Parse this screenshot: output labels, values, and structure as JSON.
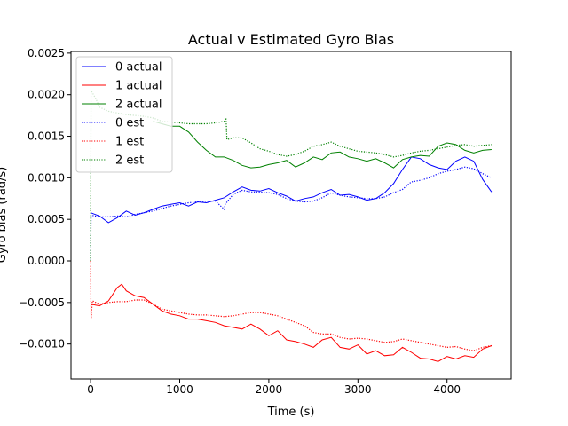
{
  "chart_data": {
    "type": "line",
    "title": "Actual v Estimated Gyro Bias",
    "xlabel": "Time (s)",
    "ylabel": "Gyro bias (rad/s)",
    "xlim": [
      -220,
      4720
    ],
    "ylim": [
      -0.00142,
      0.00252
    ],
    "xticks": [
      0,
      1000,
      2000,
      3000,
      4000
    ],
    "xtick_labels": [
      "0",
      "1000",
      "2000",
      "3000",
      "4000"
    ],
    "yticks": [
      -0.001,
      -0.0005,
      0.0,
      0.0005,
      0.001,
      0.0015,
      0.002,
      0.0025
    ],
    "ytick_labels": [
      "−0.0010",
      "−0.0005",
      "0.0000",
      "0.0005",
      "0.0010",
      "0.0015",
      "0.0020",
      "0.0025"
    ],
    "grid": false,
    "legend_position": "upper-left",
    "series": [
      {
        "name": "0 actual",
        "color": "#0000ff",
        "style": "solid",
        "points": [
          [
            0,
            0.00058
          ],
          [
            100,
            0.00054
          ],
          [
            200,
            0.00046
          ],
          [
            300,
            0.00052
          ],
          [
            400,
            0.0006
          ],
          [
            500,
            0.00055
          ],
          [
            600,
            0.00058
          ],
          [
            700,
            0.00062
          ],
          [
            800,
            0.00066
          ],
          [
            900,
            0.00068
          ],
          [
            1000,
            0.0007
          ],
          [
            1100,
            0.00066
          ],
          [
            1200,
            0.00071
          ],
          [
            1300,
            0.0007
          ],
          [
            1400,
            0.00073
          ],
          [
            1500,
            0.00076
          ],
          [
            1600,
            0.00083
          ],
          [
            1700,
            0.00089
          ],
          [
            1800,
            0.00085
          ],
          [
            1900,
            0.00084
          ],
          [
            2000,
            0.00087
          ],
          [
            2100,
            0.00082
          ],
          [
            2200,
            0.00078
          ],
          [
            2300,
            0.00072
          ],
          [
            2400,
            0.00075
          ],
          [
            2500,
            0.00077
          ],
          [
            2600,
            0.00082
          ],
          [
            2700,
            0.00086
          ],
          [
            2800,
            0.00079
          ],
          [
            2900,
            0.0008
          ],
          [
            3000,
            0.00077
          ],
          [
            3100,
            0.00073
          ],
          [
            3200,
            0.00075
          ],
          [
            3300,
            0.00082
          ],
          [
            3400,
            0.00093
          ],
          [
            3500,
            0.0011
          ],
          [
            3600,
            0.00125
          ],
          [
            3700,
            0.00123
          ],
          [
            3800,
            0.00116
          ],
          [
            3900,
            0.00112
          ],
          [
            4000,
            0.0011
          ],
          [
            4100,
            0.0012
          ],
          [
            4200,
            0.00125
          ],
          [
            4300,
            0.0012
          ],
          [
            4400,
            0.00098
          ],
          [
            4500,
            0.00083
          ]
        ]
      },
      {
        "name": "1 actual",
        "color": "#ff0000",
        "style": "solid",
        "points": [
          [
            0,
            -0.00052
          ],
          [
            100,
            -0.00054
          ],
          [
            200,
            -0.00048
          ],
          [
            300,
            -0.00032
          ],
          [
            350,
            -0.00028
          ],
          [
            400,
            -0.00036
          ],
          [
            500,
            -0.00042
          ],
          [
            600,
            -0.00044
          ],
          [
            700,
            -0.00052
          ],
          [
            800,
            -0.0006
          ],
          [
            900,
            -0.00064
          ],
          [
            1000,
            -0.00066
          ],
          [
            1100,
            -0.0007
          ],
          [
            1200,
            -0.0007
          ],
          [
            1300,
            -0.00072
          ],
          [
            1400,
            -0.00074
          ],
          [
            1500,
            -0.00078
          ],
          [
            1600,
            -0.0008
          ],
          [
            1700,
            -0.00082
          ],
          [
            1800,
            -0.00076
          ],
          [
            1900,
            -0.00082
          ],
          [
            2000,
            -0.0009
          ],
          [
            2100,
            -0.00084
          ],
          [
            2200,
            -0.00095
          ],
          [
            2300,
            -0.00097
          ],
          [
            2400,
            -0.001
          ],
          [
            2500,
            -0.00104
          ],
          [
            2600,
            -0.00095
          ],
          [
            2700,
            -0.00092
          ],
          [
            2800,
            -0.00104
          ],
          [
            2900,
            -0.00106
          ],
          [
            3000,
            -0.00101
          ],
          [
            3100,
            -0.00112
          ],
          [
            3200,
            -0.00108
          ],
          [
            3300,
            -0.00114
          ],
          [
            3400,
            -0.00113
          ],
          [
            3500,
            -0.00104
          ],
          [
            3600,
            -0.0011
          ],
          [
            3700,
            -0.00117
          ],
          [
            3800,
            -0.00118
          ],
          [
            3900,
            -0.00121
          ],
          [
            4000,
            -0.00115
          ],
          [
            4100,
            -0.00118
          ],
          [
            4200,
            -0.00114
          ],
          [
            4300,
            -0.00116
          ],
          [
            4400,
            -0.00106
          ],
          [
            4500,
            -0.00102
          ]
        ]
      },
      {
        "name": "2 actual",
        "color": "#008000",
        "style": "solid",
        "points": [
          [
            700,
            0.00168
          ],
          [
            800,
            0.00165
          ],
          [
            900,
            0.00162
          ],
          [
            1000,
            0.00162
          ],
          [
            1100,
            0.00155
          ],
          [
            1200,
            0.00143
          ],
          [
            1300,
            0.00133
          ],
          [
            1400,
            0.00125
          ],
          [
            1500,
            0.00125
          ],
          [
            1600,
            0.00121
          ],
          [
            1700,
            0.00115
          ],
          [
            1800,
            0.00112
          ],
          [
            1900,
            0.00113
          ],
          [
            2000,
            0.00116
          ],
          [
            2100,
            0.00118
          ],
          [
            2200,
            0.00121
          ],
          [
            2300,
            0.00113
          ],
          [
            2400,
            0.00118
          ],
          [
            2500,
            0.00125
          ],
          [
            2600,
            0.00122
          ],
          [
            2700,
            0.0013
          ],
          [
            2800,
            0.00131
          ],
          [
            2900,
            0.00125
          ],
          [
            3000,
            0.00123
          ],
          [
            3100,
            0.0012
          ],
          [
            3200,
            0.00123
          ],
          [
            3300,
            0.00118
          ],
          [
            3400,
            0.00112
          ],
          [
            3500,
            0.00122
          ],
          [
            3600,
            0.00125
          ],
          [
            3700,
            0.00127
          ],
          [
            3800,
            0.00126
          ],
          [
            3900,
            0.00138
          ],
          [
            4000,
            0.00142
          ],
          [
            4100,
            0.0014
          ],
          [
            4200,
            0.00133
          ],
          [
            4300,
            0.0013
          ],
          [
            4400,
            0.00133
          ],
          [
            4500,
            0.00134
          ]
        ]
      },
      {
        "name": "0 est",
        "color": "#0000ff",
        "style": "dotted",
        "points": [
          [
            0,
            0.0
          ],
          [
            5,
            0.00055
          ],
          [
            100,
            0.00053
          ],
          [
            200,
            0.00053
          ],
          [
            300,
            0.00054
          ],
          [
            400,
            0.00053
          ],
          [
            500,
            0.00056
          ],
          [
            600,
            0.00058
          ],
          [
            700,
            0.0006
          ],
          [
            800,
            0.00063
          ],
          [
            900,
            0.00066
          ],
          [
            1000,
            0.00068
          ],
          [
            1100,
            0.0007
          ],
          [
            1200,
            0.00071
          ],
          [
            1300,
            0.00072
          ],
          [
            1400,
            0.00072
          ],
          [
            1500,
            0.00062
          ],
          [
            1510,
            0.00068
          ],
          [
            1600,
            0.0008
          ],
          [
            1700,
            0.00085
          ],
          [
            1800,
            0.00083
          ],
          [
            1900,
            0.00083
          ],
          [
            2000,
            0.00082
          ],
          [
            2100,
            0.0008
          ],
          [
            2200,
            0.00075
          ],
          [
            2300,
            0.00072
          ],
          [
            2400,
            0.00071
          ],
          [
            2500,
            0.00072
          ],
          [
            2600,
            0.00076
          ],
          [
            2700,
            0.00082
          ],
          [
            2800,
            0.00079
          ],
          [
            2900,
            0.00077
          ],
          [
            3000,
            0.00076
          ],
          [
            3100,
            0.00075
          ],
          [
            3200,
            0.00075
          ],
          [
            3300,
            0.00077
          ],
          [
            3400,
            0.00082
          ],
          [
            3500,
            0.00086
          ],
          [
            3600,
            0.00095
          ],
          [
            3700,
            0.00097
          ],
          [
            3800,
            0.001
          ],
          [
            3900,
            0.00105
          ],
          [
            4000,
            0.00108
          ],
          [
            4100,
            0.0011
          ],
          [
            4200,
            0.00113
          ],
          [
            4300,
            0.00111
          ],
          [
            4400,
            0.00105
          ],
          [
            4500,
            0.001
          ]
        ]
      },
      {
        "name": "1 est",
        "color": "#ff0000",
        "style": "dotted",
        "points": [
          [
            0,
            0.0
          ],
          [
            5,
            -0.0007
          ],
          [
            20,
            -0.00048
          ],
          [
            100,
            -0.00052
          ],
          [
            200,
            -0.0005
          ],
          [
            300,
            -0.00049
          ],
          [
            400,
            -0.00049
          ],
          [
            500,
            -0.00047
          ],
          [
            600,
            -0.00047
          ],
          [
            700,
            -0.00052
          ],
          [
            800,
            -0.00058
          ],
          [
            900,
            -0.0006
          ],
          [
            1000,
            -0.00062
          ],
          [
            1100,
            -0.00064
          ],
          [
            1200,
            -0.00065
          ],
          [
            1300,
            -0.00065
          ],
          [
            1400,
            -0.00066
          ],
          [
            1500,
            -0.00067
          ],
          [
            1600,
            -0.00066
          ],
          [
            1700,
            -0.00064
          ],
          [
            1800,
            -0.00062
          ],
          [
            1900,
            -0.00062
          ],
          [
            2000,
            -0.00064
          ],
          [
            2100,
            -0.00066
          ],
          [
            2200,
            -0.0007
          ],
          [
            2300,
            -0.00074
          ],
          [
            2400,
            -0.00078
          ],
          [
            2500,
            -0.00086
          ],
          [
            2600,
            -0.00088
          ],
          [
            2700,
            -0.00088
          ],
          [
            2800,
            -0.00092
          ],
          [
            2900,
            -0.00094
          ],
          [
            3000,
            -0.00093
          ],
          [
            3100,
            -0.00094
          ],
          [
            3200,
            -0.00096
          ],
          [
            3300,
            -0.00098
          ],
          [
            3400,
            -0.00097
          ],
          [
            3500,
            -0.00094
          ],
          [
            3600,
            -0.00096
          ],
          [
            3700,
            -0.00098
          ],
          [
            3800,
            -0.001
          ],
          [
            3900,
            -0.00102
          ],
          [
            4000,
            -0.00104
          ],
          [
            4100,
            -0.00103
          ],
          [
            4200,
            -0.00106
          ],
          [
            4300,
            -0.00108
          ],
          [
            4400,
            -0.00104
          ],
          [
            4500,
            -0.00102
          ]
        ]
      },
      {
        "name": "2 est",
        "color": "#008000",
        "style": "dotted",
        "points": [
          [
            0,
            0.0
          ],
          [
            5,
            0.00205
          ],
          [
            60,
            0.00195
          ],
          [
            100,
            0.00185
          ],
          [
            200,
            0.0018
          ],
          [
            300,
            0.00178
          ],
          [
            400,
            0.00176
          ],
          [
            500,
            0.00175
          ],
          [
            600,
            0.00174
          ],
          [
            700,
            0.00172
          ],
          [
            800,
            0.00168
          ],
          [
            900,
            0.00167
          ],
          [
            1000,
            0.00166
          ],
          [
            1100,
            0.00165
          ],
          [
            1200,
            0.00165
          ],
          [
            1300,
            0.00165
          ],
          [
            1400,
            0.00166
          ],
          [
            1500,
            0.00168
          ],
          [
            1520,
            0.00172
          ],
          [
            1530,
            0.00146
          ],
          [
            1600,
            0.00148
          ],
          [
            1700,
            0.00148
          ],
          [
            1800,
            0.00142
          ],
          [
            1900,
            0.00135
          ],
          [
            2000,
            0.00132
          ],
          [
            2100,
            0.00128
          ],
          [
            2200,
            0.00126
          ],
          [
            2300,
            0.00128
          ],
          [
            2400,
            0.00132
          ],
          [
            2500,
            0.00138
          ],
          [
            2600,
            0.0014
          ],
          [
            2700,
            0.00143
          ],
          [
            2800,
            0.00138
          ],
          [
            2900,
            0.00135
          ],
          [
            3000,
            0.00132
          ],
          [
            3100,
            0.00131
          ],
          [
            3200,
            0.0013
          ],
          [
            3300,
            0.00128
          ],
          [
            3400,
            0.00125
          ],
          [
            3500,
            0.00127
          ],
          [
            3600,
            0.0013
          ],
          [
            3700,
            0.00132
          ],
          [
            3800,
            0.00133
          ],
          [
            3900,
            0.00135
          ],
          [
            4000,
            0.00137
          ],
          [
            4100,
            0.00139
          ],
          [
            4200,
            0.0014
          ],
          [
            4300,
            0.00138
          ],
          [
            4400,
            0.00139
          ],
          [
            4500,
            0.0014
          ]
        ]
      }
    ]
  }
}
